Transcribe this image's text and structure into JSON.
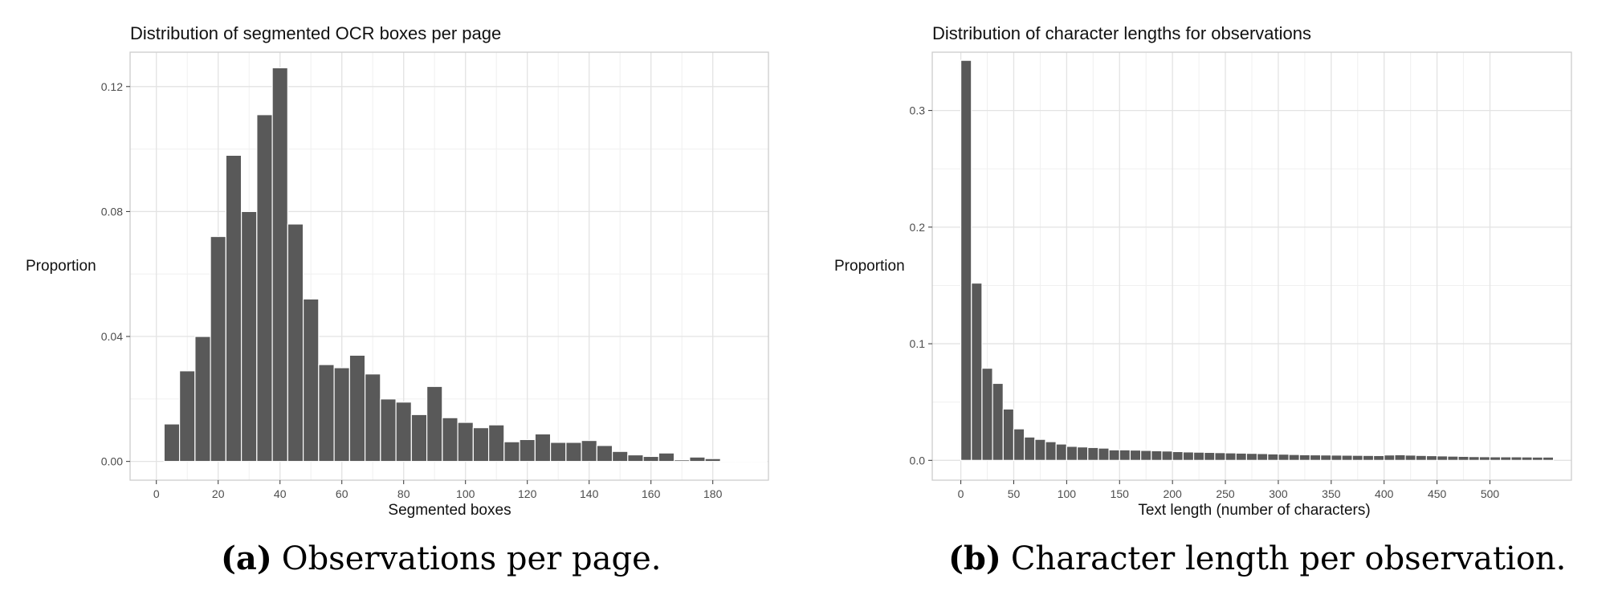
{
  "chart_data": [
    {
      "id": "a",
      "type": "bar",
      "title": "Distribution of segmented OCR boxes per page",
      "xlabel": "Segmented boxes",
      "ylabel": "Proportion",
      "caption_tag": "(a)",
      "caption": "Observations per page.",
      "bin_width": 5,
      "bin_start": -2.5,
      "xlim": [
        -8.5,
        198
      ],
      "ylim": [
        -0.006,
        0.131
      ],
      "xticks": [
        0,
        20,
        40,
        60,
        80,
        100,
        120,
        140,
        160,
        180
      ],
      "xtick_labels": [
        "0",
        "20",
        "40",
        "60",
        "80",
        "100",
        "120",
        "140",
        "160",
        "180"
      ],
      "yticks": [
        0,
        0.04,
        0.08,
        0.12
      ],
      "ytick_labels": [
        "0.00",
        "0.04",
        "0.08",
        "0.12"
      ],
      "values": [
        0.0,
        0.012,
        0.029,
        0.04,
        0.072,
        0.098,
        0.08,
        0.111,
        0.126,
        0.076,
        0.052,
        0.031,
        0.03,
        0.034,
        0.028,
        0.02,
        0.019,
        0.015,
        0.024,
        0.014,
        0.0125,
        0.0108,
        0.0117,
        0.0063,
        0.007,
        0.0088,
        0.0061,
        0.0061,
        0.0067,
        0.0051,
        0.0032,
        0.0021,
        0.0016,
        0.0027,
        0.0005,
        0.0014,
        0.0009,
        0.0003,
        0.0002,
        0.0003
      ],
      "grid": true,
      "bar_color": "#595959"
    },
    {
      "id": "b",
      "type": "bar",
      "title": "Distribution of character lengths for observations",
      "xlabel": "Text length (number of characters)",
      "ylabel": "Proportion",
      "caption_tag": "(b)",
      "caption": "Character length per observation.",
      "bin_width": 10,
      "bin_start": 0,
      "xlim": [
        -27,
        577
      ],
      "ylim": [
        -0.017,
        0.35
      ],
      "xticks": [
        0,
        50,
        100,
        150,
        200,
        250,
        300,
        350,
        400,
        450,
        500
      ],
      "xtick_labels": [
        "0",
        "50",
        "100",
        "150",
        "200",
        "250",
        "300",
        "350",
        "400",
        "450",
        "500"
      ],
      "yticks": [
        0,
        0.1,
        0.2,
        0.3
      ],
      "ytick_labels": [
        "0.0",
        "0.1",
        "0.2",
        "0.3"
      ],
      "values": [
        0.343,
        0.152,
        0.079,
        0.066,
        0.044,
        0.027,
        0.02,
        0.018,
        0.016,
        0.014,
        0.012,
        0.0115,
        0.011,
        0.0105,
        0.009,
        0.009,
        0.0088,
        0.0085,
        0.0082,
        0.008,
        0.0075,
        0.0072,
        0.007,
        0.0068,
        0.0066,
        0.0064,
        0.0062,
        0.006,
        0.0058,
        0.0055,
        0.0053,
        0.005,
        0.0048,
        0.0047,
        0.0046,
        0.0045,
        0.0044,
        0.0043,
        0.0042,
        0.0041,
        0.0046,
        0.0048,
        0.0045,
        0.0042,
        0.004,
        0.0038,
        0.0036,
        0.0034,
        0.0032,
        0.0031,
        0.003,
        0.003,
        0.003,
        0.0029,
        0.0028,
        0.0028
      ],
      "grid": true,
      "bar_color": "#595959"
    }
  ]
}
